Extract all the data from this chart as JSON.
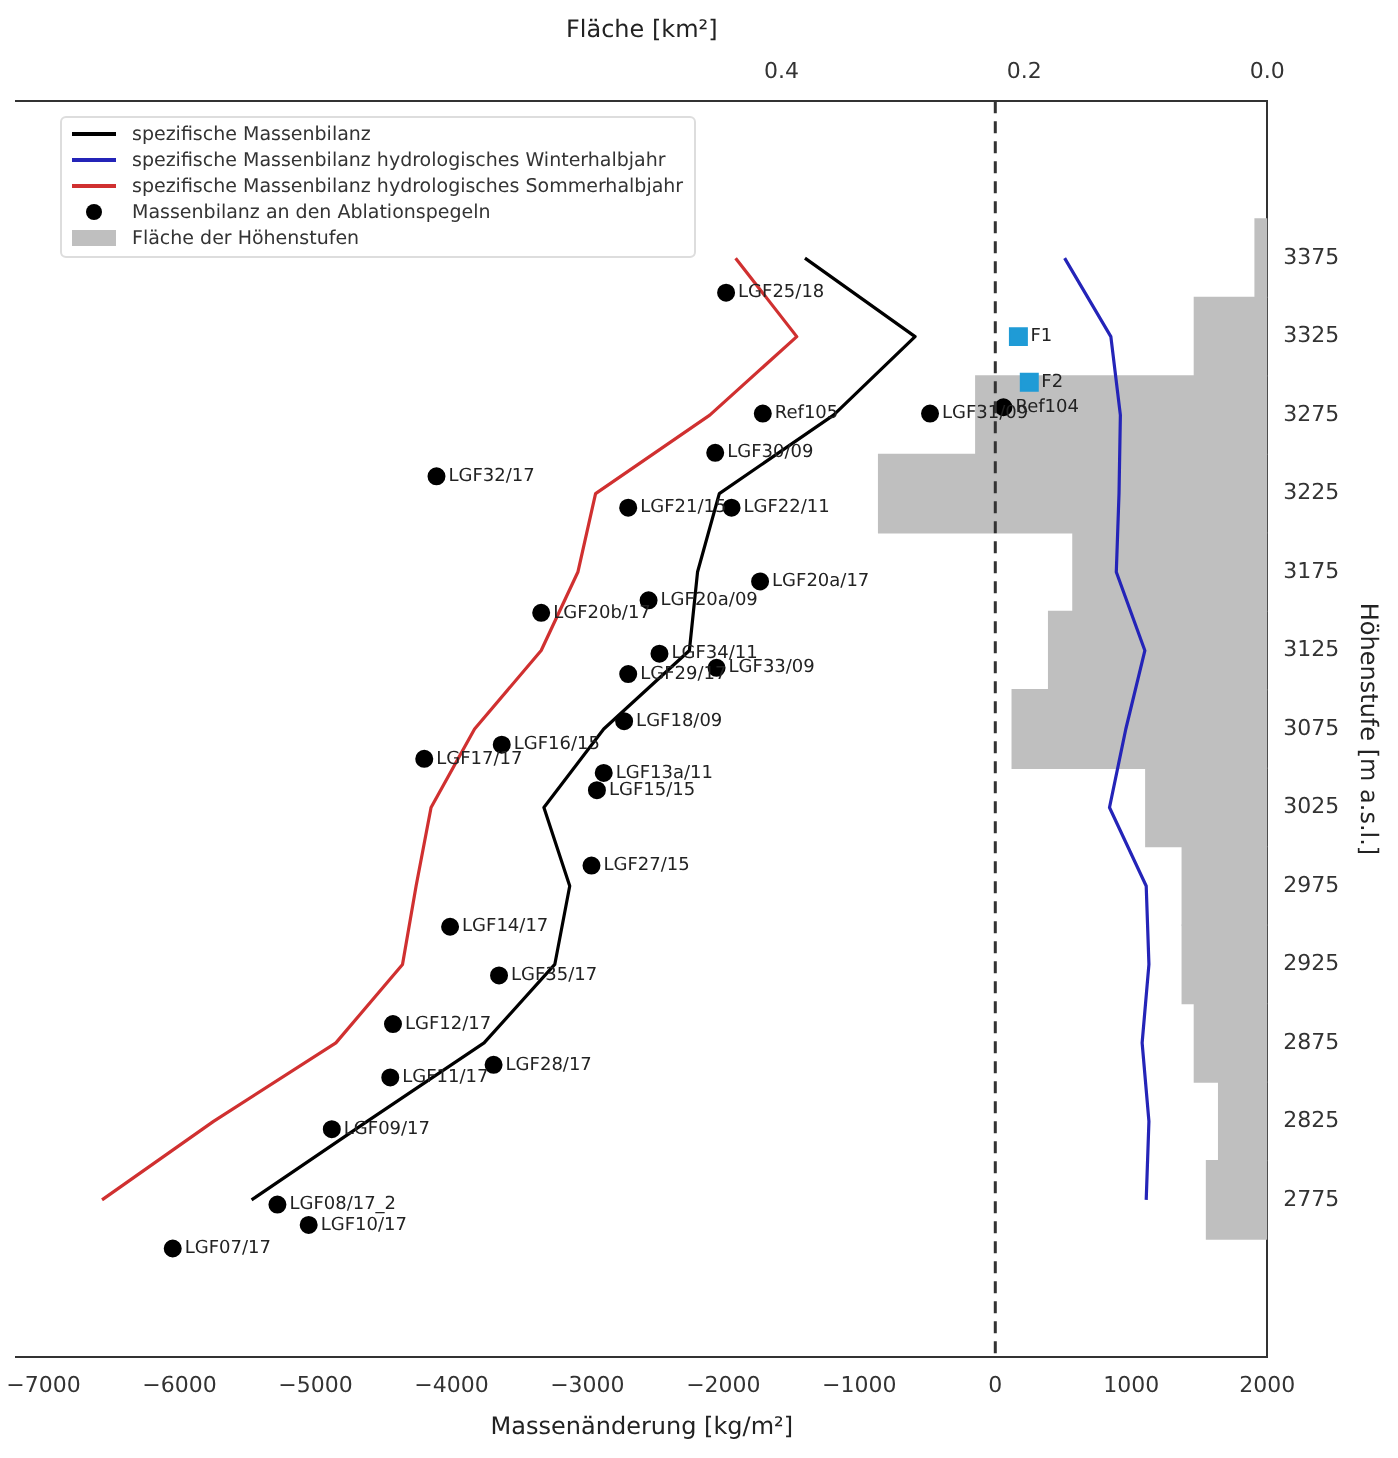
{
  "chart_data": {
    "type": "line",
    "xlabel": "Massenänderung [kg/m²]",
    "ylabel": "Höhenstufe [m a.s.l.]",
    "x2label": "Fläche [km²]",
    "xlim": [
      -7200,
      2000
    ],
    "xticks": [
      {
        "value": -7000,
        "label": "−7000"
      },
      {
        "value": -6000,
        "label": "−6000"
      },
      {
        "value": -5000,
        "label": "−5000"
      },
      {
        "value": -4000,
        "label": "−4000"
      },
      {
        "value": -3000,
        "label": "−3000"
      },
      {
        "value": -2000,
        "label": "−2000"
      },
      {
        "value": -1000,
        "label": "−1000"
      },
      0,
      1000,
      2000
    ],
    "x2lim": [
      1.03,
      0
    ],
    "x2ticks": [
      0.4,
      0.2,
      {
        "value": 0,
        "label": "0.0"
      }
    ],
    "ylim": [
      2675,
      3475
    ],
    "yticks": [
      2775,
      2825,
      2875,
      2925,
      2975,
      3025,
      3075,
      3125,
      3175,
      3225,
      3275,
      3325,
      3375
    ],
    "legend": "top left",
    "orientation": "horizontal",
    "ref_lines": [
      {
        "axis": "x",
        "value": 0,
        "color": "#333333",
        "line_style": "dashed"
      }
    ],
    "series": [
      {
        "name": "spezifische Massenbilanz",
        "type": "line",
        "color": "#000000",
        "values": [
          -1400,
          -590,
          -1190,
          -2030,
          -2190,
          -2250,
          -2880,
          -3320,
          -3130,
          -3240,
          -3760,
          -4620,
          -5470
        ],
        "x": [
          3375,
          3325,
          3275,
          3225,
          3175,
          3125,
          3075,
          3025,
          2975,
          2925,
          2875,
          2825,
          2775
        ]
      },
      {
        "name": "spezifische Massenbilanz hydrologisches Winterhalbjahr",
        "type": "line",
        "color": "#2424b8",
        "values": [
          510,
          850,
          920,
          910,
          890,
          1100,
          960,
          840,
          1110,
          1130,
          1080,
          1130,
          1110
        ],
        "x": [
          3375,
          3325,
          3275,
          3225,
          3175,
          3125,
          3075,
          3025,
          2975,
          2925,
          2875,
          2825,
          2775
        ]
      },
      {
        "name": "spezifische Massenbilanz hydrologisches Sommerhalbjahr",
        "type": "line",
        "color": "#d03030",
        "values": [
          -1910,
          -1460,
          -2100,
          -2940,
          -3070,
          -3340,
          -3830,
          -4150,
          -4260,
          -4360,
          -4850,
          -5750,
          -6570
        ],
        "x": [
          3375,
          3325,
          3275,
          3225,
          3175,
          3125,
          3075,
          3025,
          2975,
          2925,
          2875,
          2825,
          2775
        ]
      },
      {
        "name": "Massenbilanz an den Ablationspegeln",
        "type": "scatter",
        "marker": "circle",
        "color": "#000000",
        "values": [
          -1980,
          -1710,
          -480,
          60,
          -2060,
          -4110,
          -2700,
          -1940,
          -1730,
          -2550,
          -3340,
          -2470,
          -2050,
          -2700,
          -2730,
          -3630,
          -4200,
          -2880,
          -2930,
          -2970,
          -4010,
          -3650,
          -4430,
          -3690,
          -4450,
          -4880,
          -5280,
          -5050,
          -6050
        ],
        "x": [
          3353,
          3276,
          3276,
          3280,
          3251,
          3236,
          3216,
          3216,
          3169,
          3157,
          3149,
          3123,
          3114,
          3110,
          3080,
          3065,
          3056,
          3047,
          3036,
          2988,
          2949,
          2918,
          2887,
          2861,
          2853,
          2820,
          2772,
          2759,
          2744
        ]
      },
      {
        "type": "scatter",
        "marker": "square",
        "color": "#1f9bd6",
        "values": [
          170,
          250
        ],
        "x": [
          3325,
          3296
        ]
      },
      {
        "name": "Fläche der Höhenstufen",
        "type": "histogram",
        "axis": "x2",
        "color": "#bfbfbf",
        "bins": [
          2750,
          2800,
          2850,
          2900,
          2950,
          3000,
          3050,
          3100,
          3150,
          3200,
          3250,
          3300,
          3350,
          3400
        ],
        "values": [
          0.05,
          0.04,
          0.06,
          0.07,
          0.07,
          0.1,
          0.21,
          0.18,
          0.16,
          0.32,
          0.24,
          0.06,
          0.01
        ]
      }
    ],
    "annotations": [
      {
        "text": "LGF25/18",
        "x": -1980,
        "y": 3353
      },
      {
        "text": "Ref105",
        "x": -1710,
        "y": 3276
      },
      {
        "text": "LGF31/09",
        "x": -480,
        "y": 3276
      },
      {
        "text": "Ref104",
        "x": 60,
        "y": 3280
      },
      {
        "text": "LGF30/09",
        "x": -2060,
        "y": 3251
      },
      {
        "text": "LGF32/17",
        "x": -4110,
        "y": 3236
      },
      {
        "text": "LGF21/15",
        "x": -2700,
        "y": 3216
      },
      {
        "text": "LGF22/11",
        "x": -1940,
        "y": 3216
      },
      {
        "text": "LGF20a/17",
        "x": -1730,
        "y": 3169
      },
      {
        "text": "LGF20a/09",
        "x": -2550,
        "y": 3157
      },
      {
        "text": "LGF20b/17",
        "x": -3340,
        "y": 3149
      },
      {
        "text": "LGF34/11",
        "x": -2470,
        "y": 3123
      },
      {
        "text": "LGF33/09",
        "x": -2050,
        "y": 3114
      },
      {
        "text": "LGF29/17",
        "x": -2700,
        "y": 3110
      },
      {
        "text": "LGF18/09",
        "x": -2730,
        "y": 3080
      },
      {
        "text": "LGF16/15",
        "x": -3630,
        "y": 3065
      },
      {
        "text": "LGF17/17",
        "x": -4200,
        "y": 3056
      },
      {
        "text": "LGF13a/11",
        "x": -2880,
        "y": 3047
      },
      {
        "text": "LGF15/15",
        "x": -2930,
        "y": 3036
      },
      {
        "text": "LGF27/15",
        "x": -2970,
        "y": 2988
      },
      {
        "text": "LGF14/17",
        "x": -4010,
        "y": 2949
      },
      {
        "text": "LGF35/17",
        "x": -3650,
        "y": 2918
      },
      {
        "text": "LGF12/17",
        "x": -4430,
        "y": 2887
      },
      {
        "text": "LGF28/17",
        "x": -3690,
        "y": 2861
      },
      {
        "text": "LGF11/17",
        "x": -4450,
        "y": 2853
      },
      {
        "text": "LGF09/17",
        "x": -4880,
        "y": 2820
      },
      {
        "text": "LGF08/17_2",
        "x": -5280,
        "y": 2772
      },
      {
        "text": "LGF10/17",
        "x": -5050,
        "y": 2759
      },
      {
        "text": "LGF07/17",
        "x": -6050,
        "y": 2744
      },
      {
        "text": "F1",
        "x": 170,
        "y": 3325
      },
      {
        "text": "F2",
        "x": 250,
        "y": 3296
      }
    ]
  }
}
